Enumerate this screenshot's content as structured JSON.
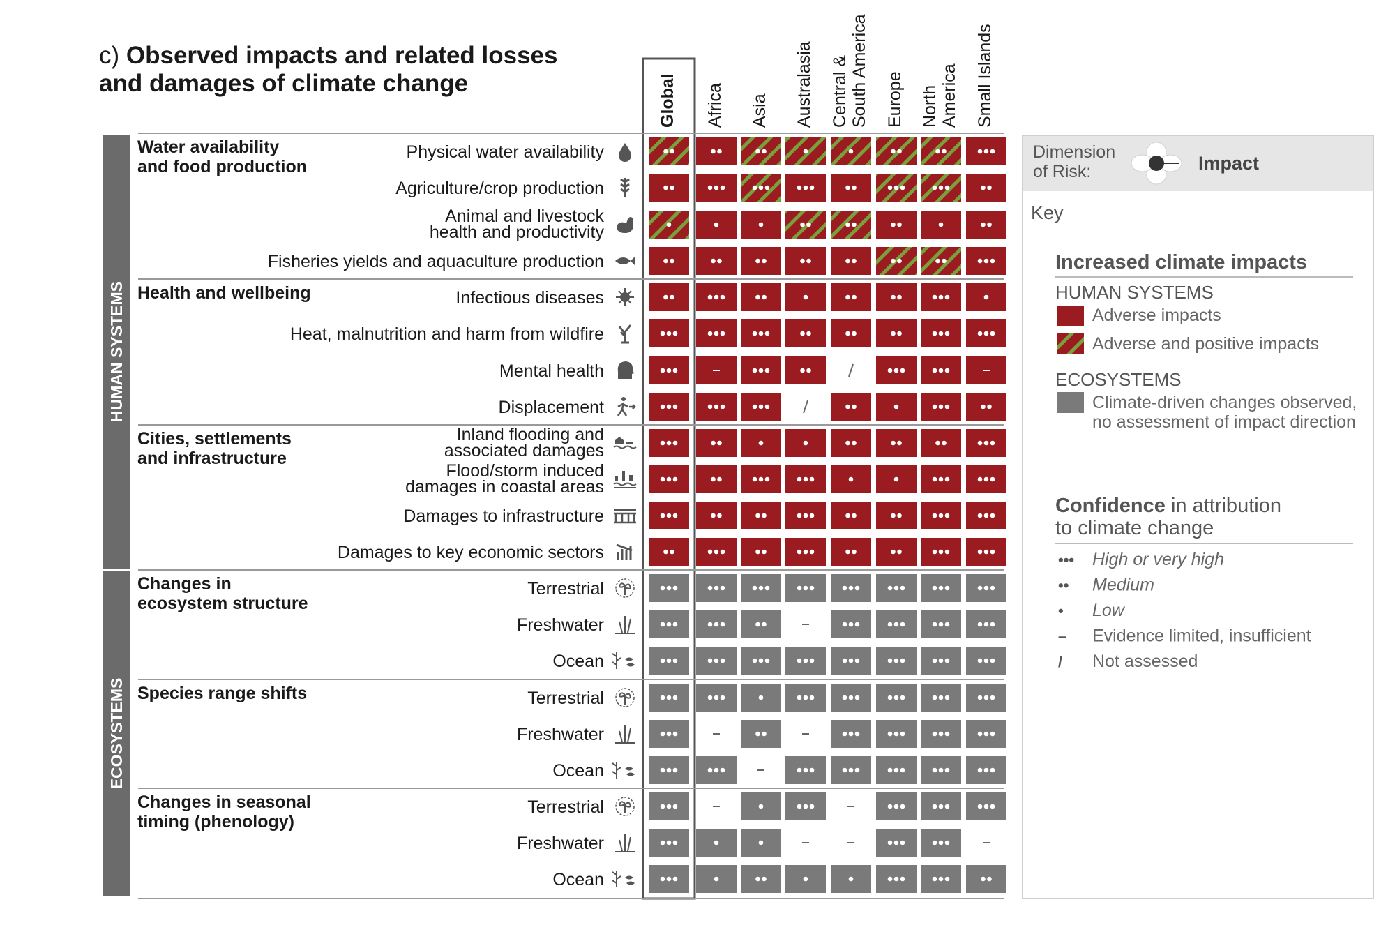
{
  "title_prefix": "c)",
  "title_line1": "Observed impacts and related losses",
  "title_line2": "and damages of climate change",
  "colors": {
    "adverse": "#9b1c20",
    "positive_stripe": "#7aa03c",
    "ecosystem": "#7a7a7a",
    "band": "#6b6b6b",
    "key_bg": "#e6e6e6"
  },
  "chart_data": {
    "type": "table",
    "columns": [
      "Global",
      "Africa",
      "Asia",
      "Australasia",
      "Central & South America",
      "Europe",
      "North America",
      "Small Islands"
    ],
    "column_label_lines": [
      [
        "Global"
      ],
      [
        "Africa"
      ],
      [
        "Asia"
      ],
      [
        "Australasia"
      ],
      [
        "Central &",
        "South America"
      ],
      [
        "Europe"
      ],
      [
        "North",
        "America"
      ],
      [
        "Small Islands"
      ]
    ],
    "bands": [
      {
        "label": "HUMAN SYSTEMS",
        "rows": [
          0,
          11
        ]
      },
      {
        "label": "ECOSYSTEMS",
        "rows": [
          12,
          20
        ]
      }
    ],
    "groups": [
      {
        "label_lines": [
          "Water availability",
          "and food production"
        ],
        "start": 0
      },
      {
        "label_lines": [
          "Health and wellbeing"
        ],
        "start": 4
      },
      {
        "label_lines": [
          "Cities, settlements",
          "and infrastructure"
        ],
        "start": 8
      },
      {
        "label_lines": [
          "Changes in",
          "ecosystem structure"
        ],
        "start": 12
      },
      {
        "label_lines": [
          "Species range shifts"
        ],
        "start": 15
      },
      {
        "label_lines": [
          "Changes in seasonal",
          "timing (phenology)"
        ],
        "start": 18
      }
    ],
    "rows": [
      {
        "label_lines": [
          "Physical water availability"
        ],
        "icon": "water-drop-icon",
        "cells": [
          [
            "H",
            2
          ],
          [
            "A",
            2
          ],
          [
            "H",
            2
          ],
          [
            "H",
            1
          ],
          [
            "H",
            1
          ],
          [
            "H",
            2
          ],
          [
            "H",
            2
          ],
          [
            "A",
            3
          ]
        ]
      },
      {
        "label_lines": [
          "Agriculture/crop production"
        ],
        "icon": "wheat-icon",
        "cells": [
          [
            "A",
            2
          ],
          [
            "A",
            3
          ],
          [
            "H",
            3
          ],
          [
            "A",
            3
          ],
          [
            "A",
            2
          ],
          [
            "H",
            3
          ],
          [
            "H",
            3
          ],
          [
            "A",
            2
          ]
        ]
      },
      {
        "label_lines": [
          "Animal and livestock",
          "health and productivity"
        ],
        "icon": "chicken-icon",
        "cells": [
          [
            "H",
            1
          ],
          [
            "A",
            1
          ],
          [
            "A",
            1
          ],
          [
            "H",
            2
          ],
          [
            "H",
            2
          ],
          [
            "A",
            2
          ],
          [
            "A",
            1
          ],
          [
            "A",
            2
          ]
        ]
      },
      {
        "label_lines": [
          "Fisheries yields and aquaculture production"
        ],
        "icon": "fish-icon",
        "cells": [
          [
            "A",
            2
          ],
          [
            "A",
            2
          ],
          [
            "A",
            2
          ],
          [
            "A",
            2
          ],
          [
            "A",
            2
          ],
          [
            "H",
            2
          ],
          [
            "H",
            2
          ],
          [
            "A",
            3
          ]
        ]
      },
      {
        "label_lines": [
          "Infectious diseases"
        ],
        "icon": "virus-icon",
        "cells": [
          [
            "A",
            2
          ],
          [
            "A",
            3
          ],
          [
            "A",
            2
          ],
          [
            "A",
            1
          ],
          [
            "A",
            2
          ],
          [
            "A",
            2
          ],
          [
            "A",
            3
          ],
          [
            "A",
            1
          ]
        ]
      },
      {
        "label_lines": [
          "Heat, malnutrition and harm from wildfire"
        ],
        "icon": "wildfire-icon",
        "cells": [
          [
            "A",
            3
          ],
          [
            "A",
            3
          ],
          [
            "A",
            3
          ],
          [
            "A",
            2
          ],
          [
            "A",
            2
          ],
          [
            "A",
            2
          ],
          [
            "A",
            3
          ],
          [
            "A",
            3
          ]
        ]
      },
      {
        "label_lines": [
          "Mental health"
        ],
        "icon": "head-icon",
        "cells": [
          [
            "A",
            3
          ],
          [
            "A",
            "dash"
          ],
          [
            "A",
            3
          ],
          [
            "A",
            2
          ],
          [
            "N",
            "slash"
          ],
          [
            "A",
            3
          ],
          [
            "A",
            3
          ],
          [
            "A",
            "dash"
          ]
        ]
      },
      {
        "label_lines": [
          "Displacement"
        ],
        "icon": "person-walking-icon",
        "cells": [
          [
            "A",
            3
          ],
          [
            "A",
            3
          ],
          [
            "A",
            3
          ],
          [
            "N",
            "slash"
          ],
          [
            "A",
            2
          ],
          [
            "A",
            1
          ],
          [
            "A",
            3
          ],
          [
            "A",
            2
          ]
        ]
      },
      {
        "label_lines": [
          "Inland flooding and",
          "associated damages"
        ],
        "icon": "flooding-icon",
        "cells": [
          [
            "A",
            3
          ],
          [
            "A",
            2
          ],
          [
            "A",
            1
          ],
          [
            "A",
            1
          ],
          [
            "A",
            2
          ],
          [
            "A",
            2
          ],
          [
            "A",
            2
          ],
          [
            "A",
            3
          ]
        ]
      },
      {
        "label_lines": [
          "Flood/storm induced",
          "damages in coastal areas"
        ],
        "icon": "coastal-flood-icon",
        "cells": [
          [
            "A",
            3
          ],
          [
            "A",
            2
          ],
          [
            "A",
            3
          ],
          [
            "A",
            3
          ],
          [
            "A",
            1
          ],
          [
            "A",
            1
          ],
          [
            "A",
            3
          ],
          [
            "A",
            3
          ]
        ]
      },
      {
        "label_lines": [
          "Damages to infrastructure"
        ],
        "icon": "infrastructure-icon",
        "cells": [
          [
            "A",
            3
          ],
          [
            "A",
            2
          ],
          [
            "A",
            2
          ],
          [
            "A",
            3
          ],
          [
            "A",
            2
          ],
          [
            "A",
            2
          ],
          [
            "A",
            3
          ],
          [
            "A",
            3
          ]
        ]
      },
      {
        "label_lines": [
          "Damages to key economic sectors"
        ],
        "icon": "economy-chart-icon",
        "cells": [
          [
            "A",
            2
          ],
          [
            "A",
            3
          ],
          [
            "A",
            2
          ],
          [
            "A",
            3
          ],
          [
            "A",
            2
          ],
          [
            "A",
            2
          ],
          [
            "A",
            3
          ],
          [
            "A",
            3
          ]
        ]
      },
      {
        "label_lines": [
          "Terrestrial"
        ],
        "icon": "terrestrial-icon",
        "cells": [
          [
            "E",
            3
          ],
          [
            "E",
            3
          ],
          [
            "E",
            3
          ],
          [
            "E",
            3
          ],
          [
            "E",
            3
          ],
          [
            "E",
            3
          ],
          [
            "E",
            3
          ],
          [
            "E",
            3
          ]
        ]
      },
      {
        "label_lines": [
          "Freshwater"
        ],
        "icon": "freshwater-icon",
        "cells": [
          [
            "E",
            3
          ],
          [
            "E",
            3
          ],
          [
            "E",
            2
          ],
          [
            "N",
            "dash"
          ],
          [
            "E",
            3
          ],
          [
            "E",
            3
          ],
          [
            "E",
            3
          ],
          [
            "E",
            3
          ]
        ]
      },
      {
        "label_lines": [
          "Ocean"
        ],
        "icon": "ocean-icon",
        "cells": [
          [
            "E",
            3
          ],
          [
            "E",
            3
          ],
          [
            "E",
            3
          ],
          [
            "E",
            3
          ],
          [
            "E",
            3
          ],
          [
            "E",
            3
          ],
          [
            "E",
            3
          ],
          [
            "E",
            3
          ]
        ]
      },
      {
        "label_lines": [
          "Terrestrial"
        ],
        "icon": "terrestrial-icon",
        "cells": [
          [
            "E",
            3
          ],
          [
            "E",
            3
          ],
          [
            "E",
            1
          ],
          [
            "E",
            3
          ],
          [
            "E",
            3
          ],
          [
            "E",
            3
          ],
          [
            "E",
            3
          ],
          [
            "E",
            3
          ]
        ]
      },
      {
        "label_lines": [
          "Freshwater"
        ],
        "icon": "freshwater-icon",
        "cells": [
          [
            "E",
            3
          ],
          [
            "N",
            "dash"
          ],
          [
            "E",
            2
          ],
          [
            "N",
            "dash"
          ],
          [
            "E",
            3
          ],
          [
            "E",
            3
          ],
          [
            "E",
            3
          ],
          [
            "E",
            3
          ]
        ]
      },
      {
        "label_lines": [
          "Ocean"
        ],
        "icon": "ocean-icon",
        "cells": [
          [
            "E",
            3
          ],
          [
            "E",
            3
          ],
          [
            "N",
            "dash"
          ],
          [
            "E",
            3
          ],
          [
            "E",
            3
          ],
          [
            "E",
            3
          ],
          [
            "E",
            3
          ],
          [
            "E",
            3
          ]
        ]
      },
      {
        "label_lines": [
          "Terrestrial"
        ],
        "icon": "terrestrial-icon",
        "cells": [
          [
            "E",
            3
          ],
          [
            "N",
            "dash"
          ],
          [
            "E",
            1
          ],
          [
            "E",
            3
          ],
          [
            "N",
            "dash"
          ],
          [
            "E",
            3
          ],
          [
            "E",
            3
          ],
          [
            "E",
            3
          ]
        ]
      },
      {
        "label_lines": [
          "Freshwater"
        ],
        "icon": "freshwater-icon",
        "cells": [
          [
            "E",
            3
          ],
          [
            "E",
            1
          ],
          [
            "E",
            1
          ],
          [
            "N",
            "dash"
          ],
          [
            "N",
            "dash"
          ],
          [
            "E",
            3
          ],
          [
            "E",
            3
          ],
          [
            "N",
            "dash"
          ]
        ]
      },
      {
        "label_lines": [
          "Ocean"
        ],
        "icon": "ocean-icon",
        "cells": [
          [
            "E",
            3
          ],
          [
            "E",
            1
          ],
          [
            "E",
            2
          ],
          [
            "E",
            1
          ],
          [
            "E",
            1
          ],
          [
            "E",
            3
          ],
          [
            "E",
            3
          ],
          [
            "E",
            2
          ]
        ]
      }
    ]
  },
  "key": {
    "dimension_label_lines": [
      "Dimension",
      "of Risk:"
    ],
    "dimension_value": "Impact",
    "key_label": "Key",
    "increased_heading": "Increased climate impacts",
    "human_systems_heading": "HUMAN SYSTEMS",
    "adverse_label": "Adverse impacts",
    "adverse_positive_label": "Adverse and positive impacts",
    "ecosystems_heading": "ECOSYSTEMS",
    "ecosystem_label_lines": [
      "Climate-driven changes observed,",
      "no assessment of impact direction"
    ],
    "confidence_word": "Confidence",
    "confidence_rest": " in attribution",
    "confidence_line2": "to climate change",
    "levels": [
      {
        "symbol": "•••",
        "label": "High or very high",
        "italic": true
      },
      {
        "symbol": "••",
        "label": "Medium",
        "italic": true
      },
      {
        "symbol": "•",
        "label": "Low",
        "italic": true
      },
      {
        "symbol": "–",
        "label": "Evidence limited, insufficient",
        "italic": false
      },
      {
        "symbol": "/",
        "label": "Not assessed",
        "italic": false
      }
    ]
  }
}
